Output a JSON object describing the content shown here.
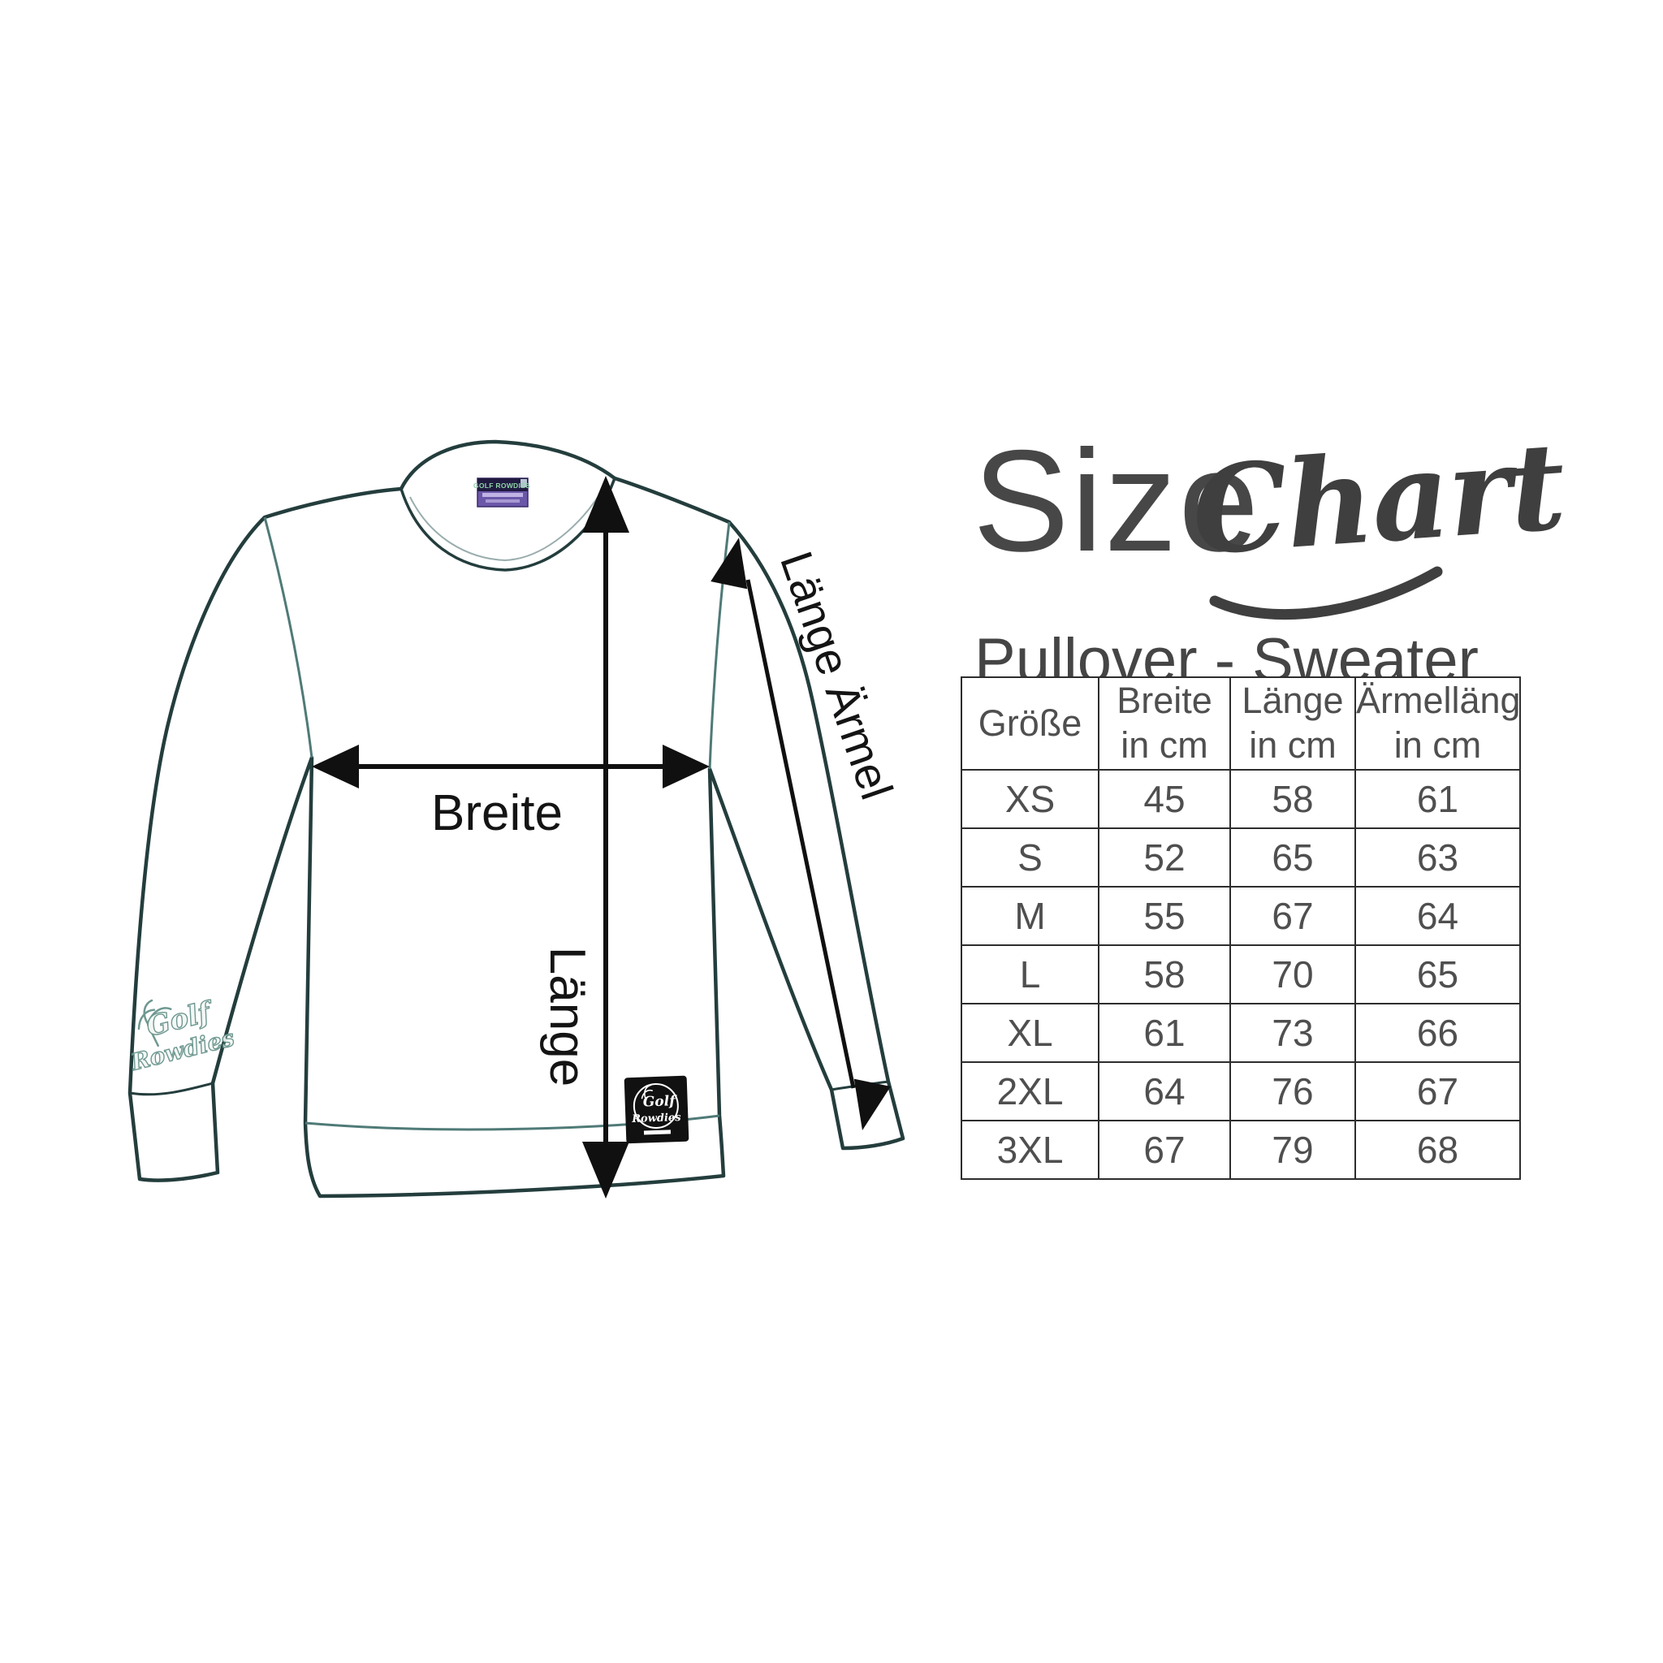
{
  "title": {
    "main": "Size",
    "script": "Chart"
  },
  "subtitle": "Pullover - Sweater",
  "diagram": {
    "label_width": "Breite",
    "label_length": "Länge",
    "label_sleeve": "Länge Ärmel",
    "neck_label_text": "GOLF ROWDIES",
    "hem_tag": {
      "line1": "Golf",
      "line2": "Rowdies"
    },
    "sleeve_logo": {
      "line1": "Golf",
      "line2": "Rowdies"
    }
  },
  "chart_data": {
    "type": "table",
    "title": "Size Chart",
    "subtitle": "Pullover - Sweater",
    "columns": [
      {
        "label": "Größe",
        "sublabel": ""
      },
      {
        "label": "Breite",
        "sublabel": "in cm"
      },
      {
        "label": "Länge",
        "sublabel": "in cm"
      },
      {
        "label": "Ärmellänge",
        "sublabel": "in cm"
      }
    ],
    "rows": [
      [
        "XS",
        "45",
        "58",
        "61"
      ],
      [
        "S",
        "52",
        "65",
        "63"
      ],
      [
        "M",
        "55",
        "67",
        "64"
      ],
      [
        "L",
        "58",
        "70",
        "65"
      ],
      [
        "XL",
        "61",
        "73",
        "66"
      ],
      [
        "2XL",
        "64",
        "76",
        "67"
      ],
      [
        "3XL",
        "67",
        "79",
        "68"
      ]
    ]
  },
  "colors": {
    "garment_outline": "#243d3d",
    "seam_teal": "#4f7a77",
    "arrow_black": "#101010",
    "title_gray": "#474747",
    "table_text": "#4f4f4f",
    "table_border": "#2d2d2d",
    "neck_label_purple": "#6b57a8",
    "neck_label_band": "#201a40",
    "neck_label_text_green": "#8fd4a8",
    "hem_tag_black": "#111111"
  }
}
